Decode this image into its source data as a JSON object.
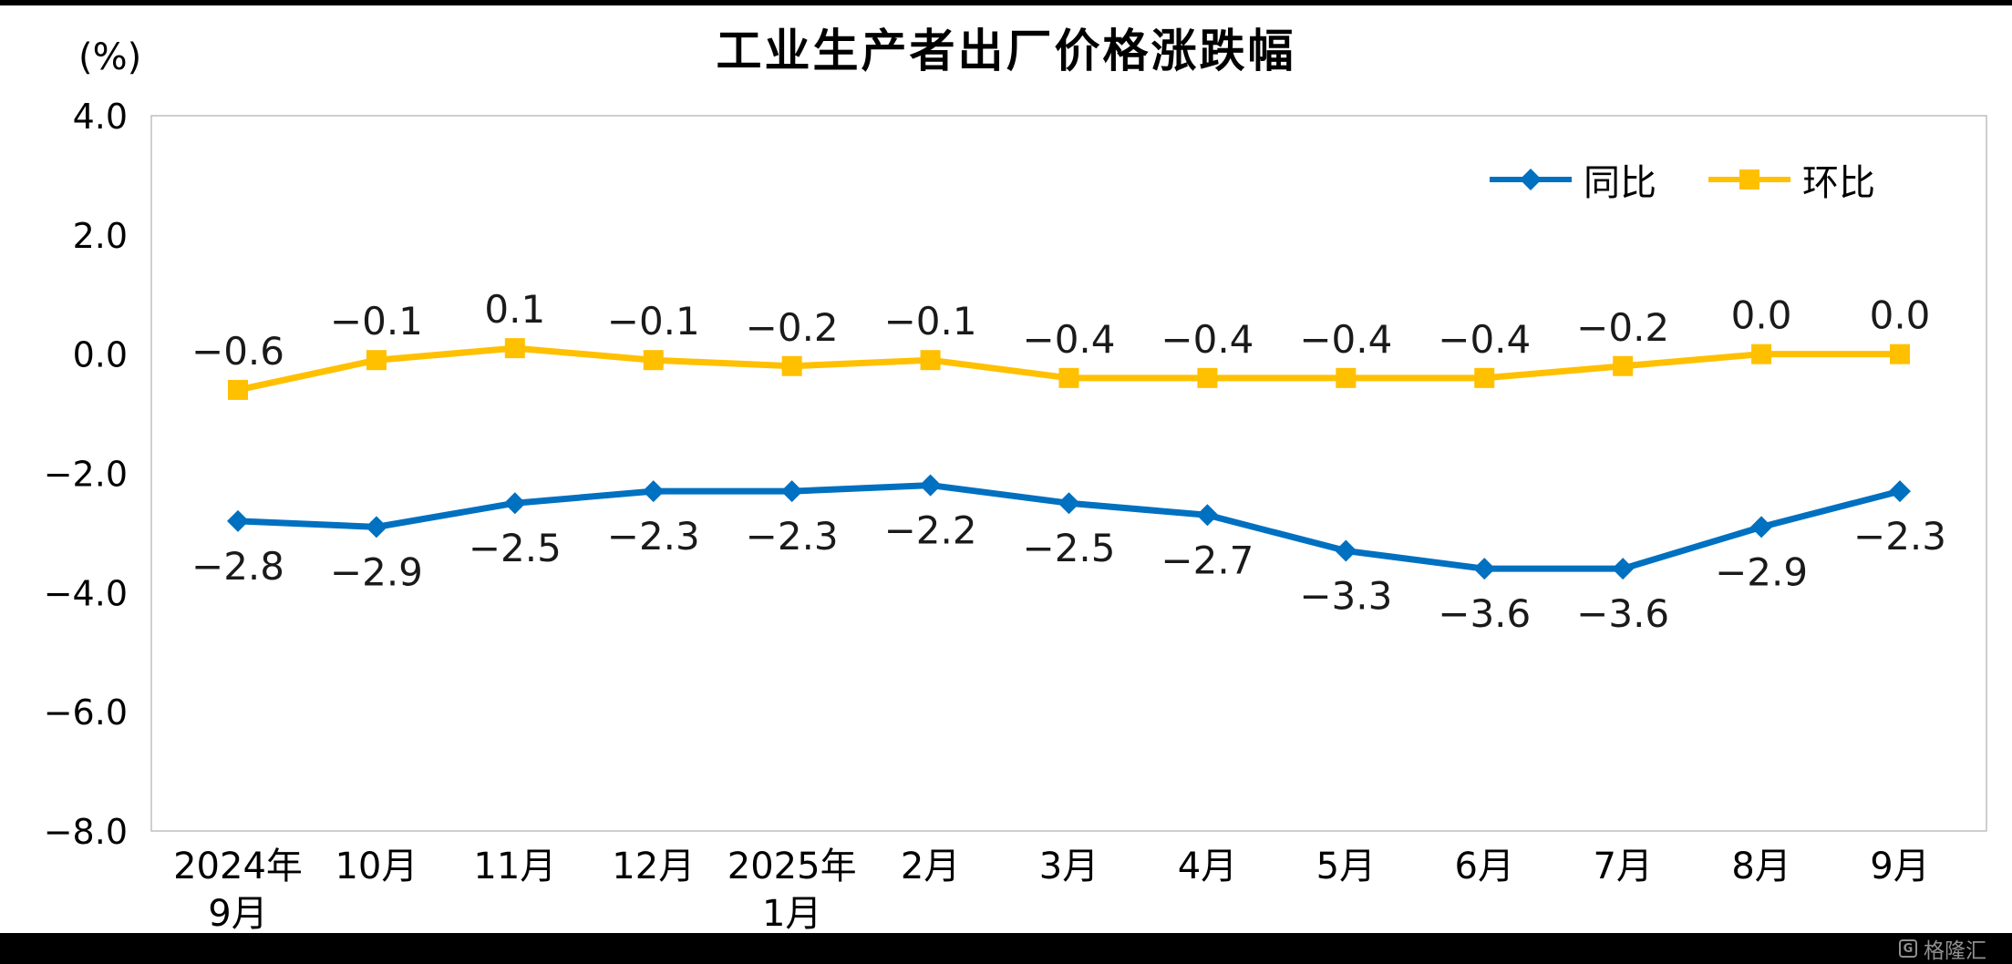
{
  "watermark": {
    "brand": "格隆汇",
    "logo_letter": "G"
  },
  "chart_data": {
    "type": "line",
    "title": "工业生产者出厂价格涨跌幅",
    "ylabel": "(%)",
    "xlabel": "",
    "ylim": [
      -8,
      4
    ],
    "y_ticks": [
      4.0,
      2.0,
      0.0,
      -2.0,
      -4.0,
      -6.0,
      -8.0
    ],
    "grid": false,
    "legend_position": "top-right",
    "categories": [
      [
        "2024年",
        "9月"
      ],
      [
        "10月"
      ],
      [
        "11月"
      ],
      [
        "12月"
      ],
      [
        "2025年",
        "1月"
      ],
      [
        "2月"
      ],
      [
        "3月"
      ],
      [
        "4月"
      ],
      [
        "5月"
      ],
      [
        "6月"
      ],
      [
        "7月"
      ],
      [
        "8月"
      ],
      [
        "9月"
      ]
    ],
    "series": [
      {
        "name": "同比",
        "color": "#0070C0",
        "marker": "diamond",
        "label_position": "below",
        "values": [
          -2.8,
          -2.9,
          -2.5,
          -2.3,
          -2.3,
          -2.2,
          -2.5,
          -2.7,
          -3.3,
          -3.6,
          -3.6,
          -2.9,
          -2.3
        ]
      },
      {
        "name": "环比",
        "color": "#FFC000",
        "marker": "square",
        "label_position": "above",
        "values": [
          -0.6,
          -0.1,
          0.1,
          -0.1,
          -0.2,
          -0.1,
          -0.4,
          -0.4,
          -0.4,
          -0.4,
          -0.2,
          0.0,
          0.0
        ]
      }
    ]
  }
}
